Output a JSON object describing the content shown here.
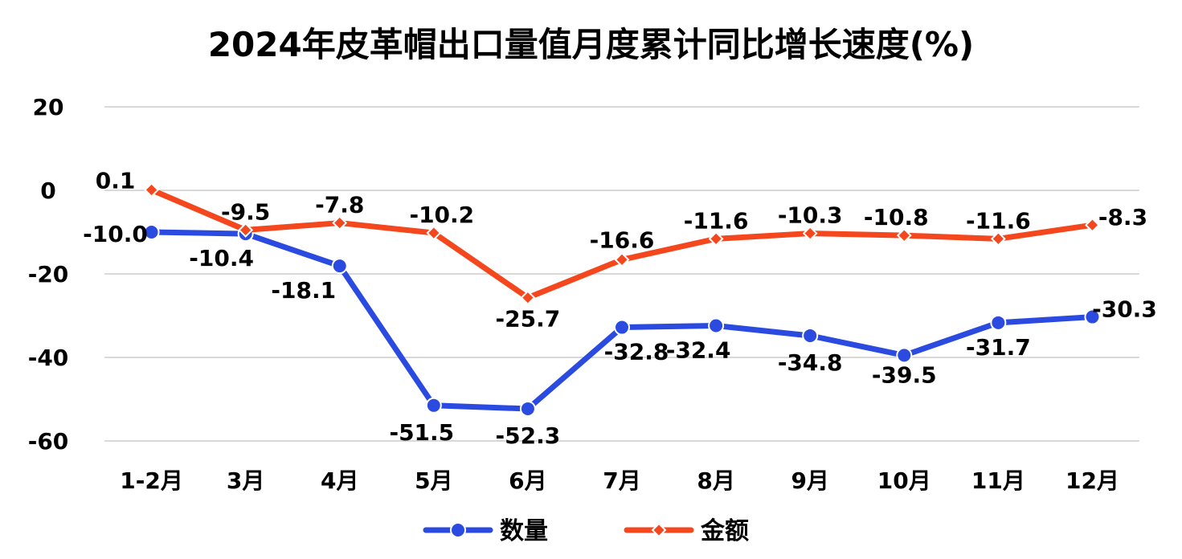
{
  "chart_data": {
    "type": "line",
    "title": "2024年皮革帽出口量值月度累计同比增长速度(%)",
    "categories": [
      "1-2月",
      "3月",
      "4月",
      "5月",
      "6月",
      "7月",
      "8月",
      "9月",
      "10月",
      "11月",
      "12月"
    ],
    "ylim": [
      -60,
      20
    ],
    "yticks": [
      20,
      0,
      -20,
      -40,
      -60
    ],
    "grid": true,
    "legend_position": "bottom",
    "series": [
      {
        "name": "数量",
        "color": "#2b4be0",
        "marker": "circle",
        "values": [
          -10.0,
          -10.4,
          -18.1,
          -51.5,
          -52.3,
          -32.8,
          -32.4,
          -34.8,
          -39.5,
          -31.7,
          -30.3
        ],
        "labels": [
          "-10.0",
          "-10.4",
          "-18.1",
          "-51.5",
          "-52.3",
          "-32.8",
          "-32.4",
          "-34.8",
          "-39.5",
          "-31.7",
          "-30.3"
        ]
      },
      {
        "name": "金额",
        "color": "#f4471e",
        "marker": "diamond",
        "values": [
          0.1,
          -9.5,
          -7.8,
          -10.2,
          -25.7,
          -16.6,
          -11.6,
          -10.3,
          -10.8,
          -11.6,
          -8.3
        ],
        "labels": [
          "0.1",
          "-9.5",
          "-7.8",
          "-10.2",
          "-25.7",
          "-16.6",
          "-11.6",
          "-10.3",
          "-10.8",
          "-11.6",
          "-8.3"
        ]
      }
    ]
  }
}
